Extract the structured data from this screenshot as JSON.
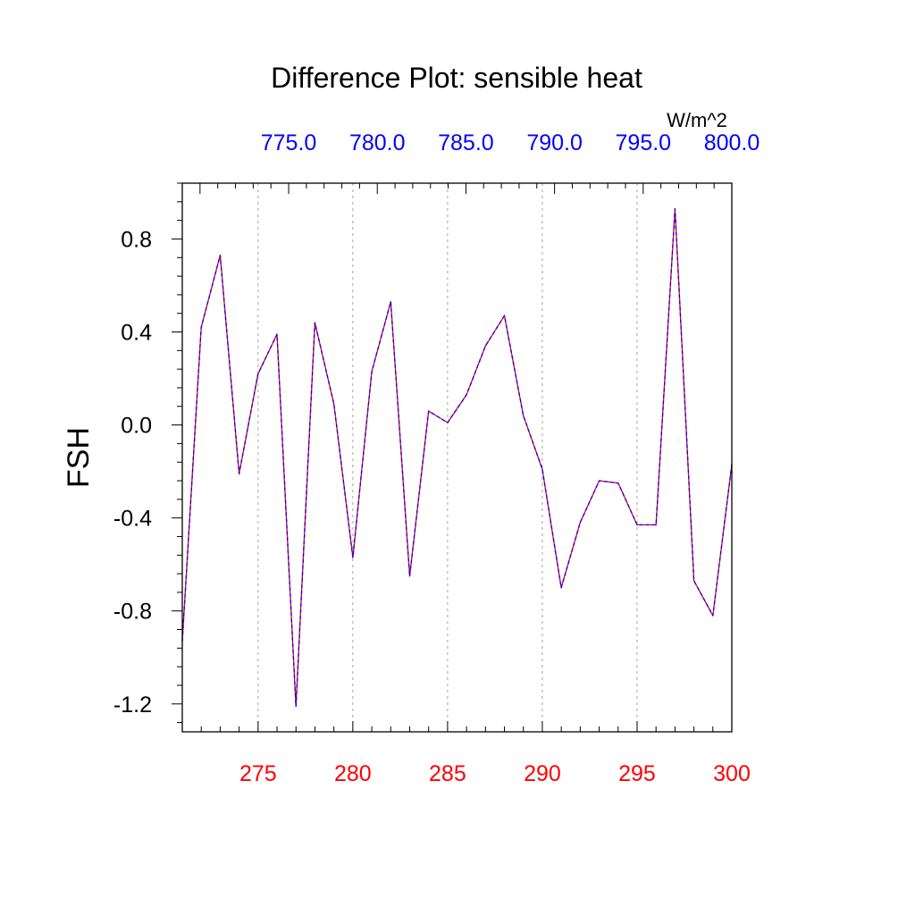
{
  "chart_data": {
    "type": "line",
    "title": "Difference Plot: sensible heat",
    "units": "W/m^2",
    "ylabel": "FSH",
    "xlabel": "",
    "xlim": [
      271,
      300
    ],
    "ylim": [
      -1.32,
      1.04
    ],
    "x_ticks": [
      275,
      280,
      285,
      290,
      295,
      300
    ],
    "x_tick_labels": [
      "275",
      "280",
      "285",
      "290",
      "295",
      "300"
    ],
    "x_tick_color": "#ff0000",
    "top_xlim": [
      769,
      800
    ],
    "top_x_ticks": [
      775,
      780,
      785,
      790,
      795,
      800
    ],
    "top_x_tick_labels": [
      "775.0",
      "780.0",
      "785.0",
      "790.0",
      "795.0",
      "800.0"
    ],
    "top_x_tick_color": "#0000ff",
    "y_ticks": [
      0.8,
      0.4,
      0.0,
      -0.4,
      -0.8,
      -1.2
    ],
    "y_tick_labels": [
      "0.8",
      "0.4",
      "0.0",
      "-0.4",
      "-0.8",
      "-1.2"
    ],
    "grid": "vertical dashed at major x ticks",
    "line_colors": [
      "#ff0000",
      "#0000ff"
    ],
    "x": [
      271,
      272,
      273,
      274,
      275,
      276,
      277,
      278,
      279,
      280,
      281,
      282,
      283,
      284,
      285,
      286,
      287,
      288,
      289,
      290,
      291,
      292,
      293,
      294,
      295,
      296,
      297,
      298,
      299,
      300
    ],
    "series": [
      {
        "values": [
          -0.93,
          0.42,
          0.73,
          -0.21,
          0.22,
          0.39,
          -1.21,
          0.44,
          0.09,
          -0.57,
          0.23,
          0.53,
          -0.65,
          0.06,
          0.01,
          0.13,
          0.34,
          0.47,
          0.04,
          -0.19,
          -0.7,
          -0.42,
          -0.24,
          -0.25,
          -0.43,
          -0.43,
          0.93,
          -0.67,
          -0.82,
          -0.17
        ]
      }
    ]
  }
}
